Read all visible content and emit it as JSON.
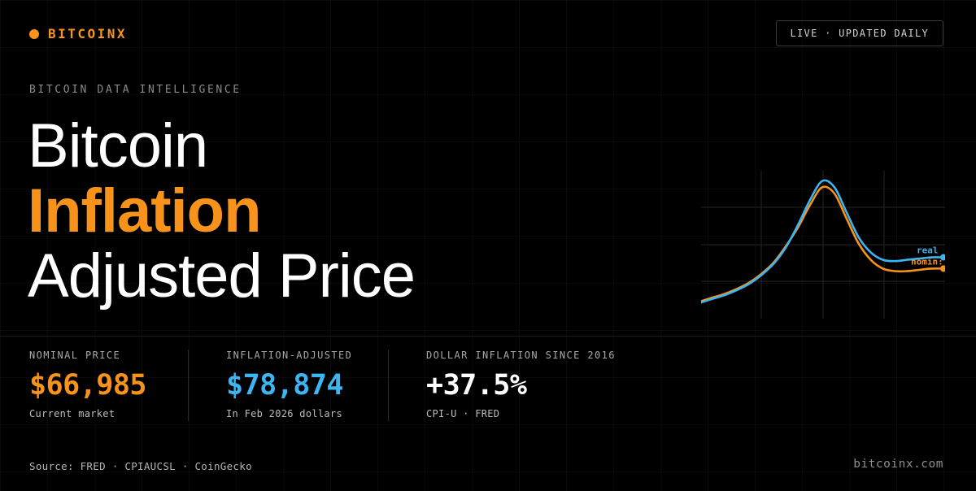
{
  "brand": {
    "name": "BITCOINX",
    "accent_color": "#f7931a"
  },
  "badge": {
    "label": "LIVE · UPDATED DAILY"
  },
  "eyebrow": "BITCOIN DATA INTELLIGENCE",
  "hero": {
    "line1": "Bitcoin",
    "line2": "Inflation",
    "line3": "Adjusted Price"
  },
  "chart_data": {
    "type": "line",
    "title": "",
    "xlabel": "",
    "ylabel": "",
    "grid": true,
    "x": [
      0,
      1,
      2,
      3,
      4,
      5,
      6,
      7,
      8,
      9,
      10,
      11,
      12,
      13,
      14,
      15,
      16,
      17,
      18,
      19,
      20
    ],
    "ylim": [
      0,
      100
    ],
    "xlim": [
      0,
      20
    ],
    "series": [
      {
        "name": "real",
        "color": "#3db5f2",
        "values": [
          0,
          3,
          6,
          10,
          15,
          22,
          31,
          44,
          62,
          82,
          97,
          92,
          72,
          52,
          40,
          34,
          33,
          34,
          35,
          36,
          36
        ]
      },
      {
        "name": "nominal",
        "color": "#f7931a",
        "values": [
          1,
          4,
          7,
          11,
          16,
          23,
          32,
          45,
          60,
          78,
          92,
          87,
          67,
          47,
          34,
          27,
          25,
          25,
          26,
          27,
          27
        ]
      }
    ],
    "legend_labels": {
      "real": "real",
      "nominal": "nomin:"
    }
  },
  "stats": [
    {
      "label": "NOMINAL PRICE",
      "value": "$66,985",
      "sub": "Current market",
      "color": "#f7931a"
    },
    {
      "label": "INFLATION-ADJUSTED",
      "value": "$78,874",
      "sub": "In Feb 2026 dollars",
      "color": "#3db5f2"
    },
    {
      "label": "DOLLAR INFLATION SINCE 2016",
      "value": "+37.5%",
      "sub": "CPI-U · FRED",
      "color": "#ffffff"
    }
  ],
  "footer": {
    "source": "Source: FRED · CPIAUCSL · CoinGecko",
    "site": "bitcoinx.com"
  }
}
